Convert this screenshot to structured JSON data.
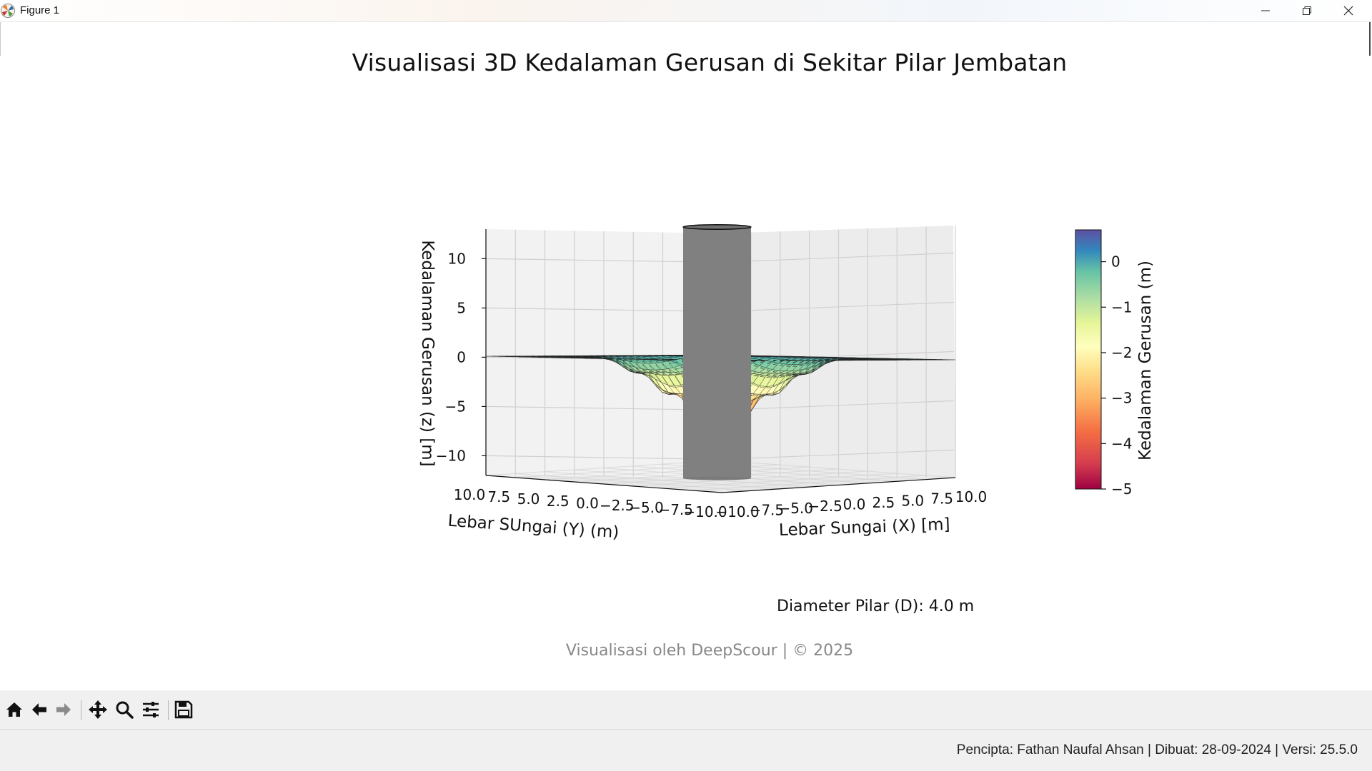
{
  "window": {
    "title": "Figure 1",
    "controls": [
      "minimize",
      "restore",
      "close"
    ]
  },
  "figure": {
    "title": "Visualisasi 3D Kedalaman Gerusan di Sekitar Pilar Jembatan",
    "caption": "Diameter Pilar (D): 4.0 m",
    "credit": "Visualisasi oleh DeepScour | © 2025"
  },
  "chart_data": {
    "type": "surface3d",
    "title": "Visualisasi 3D Kedalaman Gerusan di Sekitar Pilar Jembatan",
    "xlabel": "Lebar Sungai (X) [m]",
    "ylabel": "Lebar SUngai (Y) (m)",
    "zlabel": "Kedalaman Gerusan (z) [m]",
    "xlim": [
      -10,
      10
    ],
    "ylim": [
      -10,
      10
    ],
    "zlim": [
      -12,
      13
    ],
    "x_ticks": [
      "−10.0",
      "−7.5",
      "−5.0",
      "−2.5",
      "0.0",
      "2.5",
      "5.0",
      "7.5",
      "10.0"
    ],
    "y_ticks": [
      "10.0",
      "7.5",
      "5.0",
      "2.5",
      "0.0",
      "−2.5",
      "−5.0",
      "−7.5",
      "−10.0"
    ],
    "z_ticks": [
      "10",
      "5",
      "0",
      "−5",
      "−10"
    ],
    "grid": true,
    "colormap": "Spectral",
    "surface_min_z": -5,
    "surface_max_z": 0.7,
    "pier_diameter_m": 4.0,
    "pier_color": "#808080",
    "colorbar": {
      "label": "Kedalaman Gerusan (m)",
      "ticks": [
        "0",
        "−1",
        "−2",
        "−3",
        "−4",
        "−5"
      ],
      "range": [
        -5,
        0.7
      ]
    }
  },
  "toolbar": {
    "buttons": [
      {
        "name": "home-icon"
      },
      {
        "name": "back-icon"
      },
      {
        "name": "forward-icon"
      },
      {
        "name": "pan-icon"
      },
      {
        "name": "zoom-icon"
      },
      {
        "name": "configure-subplots-icon"
      },
      {
        "name": "save-icon"
      }
    ]
  },
  "status": {
    "text": "Pencipta: Fathan Naufal Ahsan | Dibuat: 28-09-2024 | Versi: 25.5.0"
  }
}
